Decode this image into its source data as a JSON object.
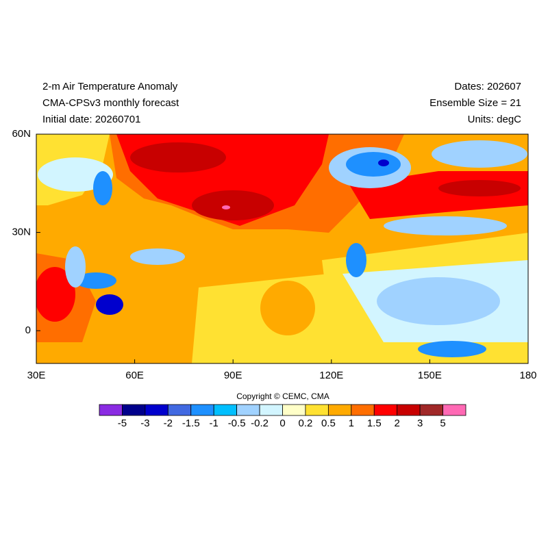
{
  "header": {
    "left": [
      "2-m Air Temperature Anomaly",
      "CMA-CPSv3 monthly forecast",
      "Initial date: 20260701"
    ],
    "right": [
      "Dates: 202607",
      "Ensemble Size = 21",
      "Units: degC"
    ]
  },
  "map": {
    "lonlim": [
      30,
      180
    ],
    "latlim": [
      -10,
      60
    ],
    "lat_labels": [
      {
        "value": 60,
        "label": "60N"
      },
      {
        "value": 30,
        "label": "30N"
      },
      {
        "value": 0,
        "label": "0"
      }
    ],
    "lon_labels": [
      {
        "value": 30,
        "label": "30E"
      },
      {
        "value": 60,
        "label": "60E"
      },
      {
        "value": 90,
        "label": "90E"
      },
      {
        "value": 120,
        "label": "120E"
      },
      {
        "value": 150,
        "label": "150E"
      },
      {
        "value": 180,
        "label": "180"
      }
    ]
  },
  "copyright": "Copyright © CEMC, CMA",
  "colorbar": {
    "colors": [
      "#8a2be2",
      "#00008b",
      "#0000cd",
      "#4169e1",
      "#1e90ff",
      "#00bfff",
      "#a0d2ff",
      "#d2f5ff",
      "#ffffc8",
      "#ffe132",
      "#ffaa00",
      "#ff6e00",
      "#ff0000",
      "#c80000",
      "#a02828",
      "#ff69b4"
    ],
    "labels": [
      -5,
      -3,
      -2,
      -1.5,
      -1,
      -0.5,
      -0.2,
      0,
      0.2,
      0.5,
      1,
      1.5,
      2,
      3,
      5
    ]
  }
}
